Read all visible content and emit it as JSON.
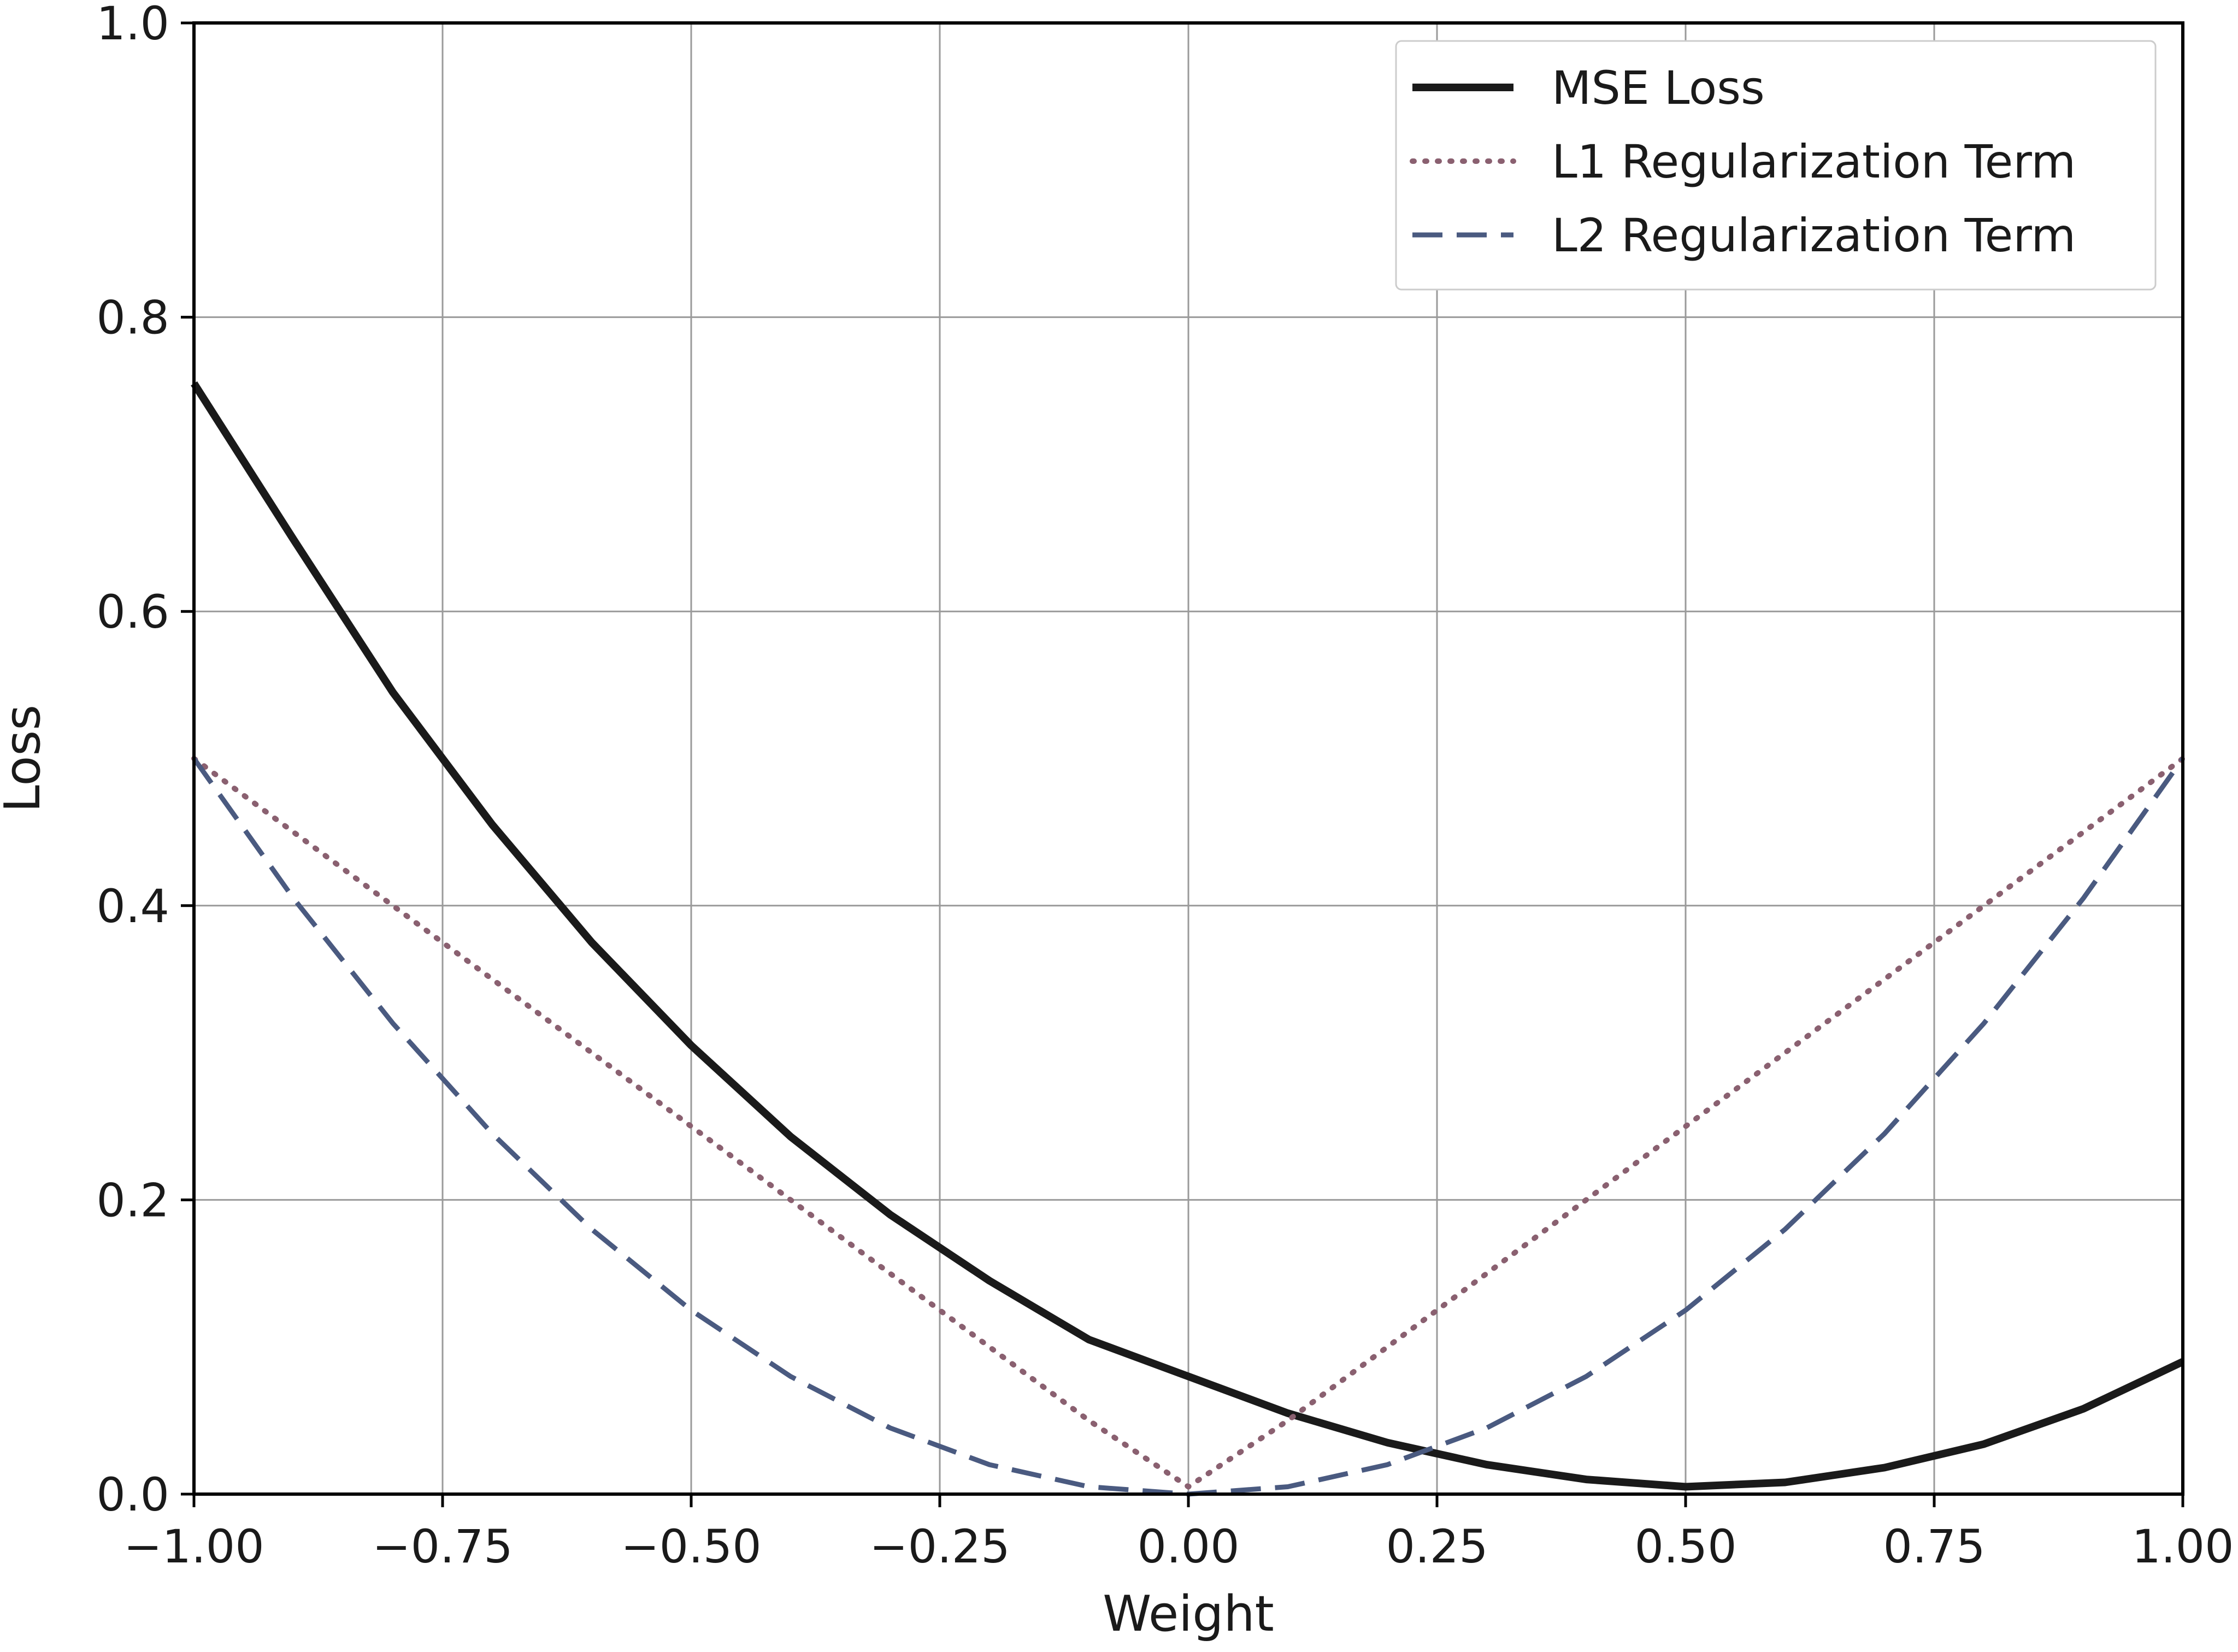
{
  "chart_data": {
    "type": "line",
    "title": "",
    "xlabel": "Weight",
    "ylabel": "Loss",
    "xlim": [
      -1.0,
      1.0
    ],
    "ylim": [
      0.0,
      1.0
    ],
    "grid": true,
    "legend_position": "top-right",
    "xticks": [
      -1.0,
      -0.75,
      -0.5,
      -0.25,
      0.0,
      0.25,
      0.5,
      0.75,
      1.0
    ],
    "xtick_labels": [
      "−1.00",
      "−0.75",
      "−0.50",
      "−0.25",
      "0.00",
      "0.25",
      "0.50",
      "0.75",
      "1.00"
    ],
    "yticks": [
      0.0,
      0.2,
      0.4,
      0.6,
      0.8,
      1.0
    ],
    "ytick_labels": [
      "0.0",
      "0.2",
      "0.4",
      "0.6",
      "0.8",
      "1.0"
    ],
    "x": [
      -1.0,
      -0.9,
      -0.8,
      -0.7,
      -0.6,
      -0.5,
      -0.4,
      -0.3,
      -0.2,
      -0.1,
      0.0,
      0.1,
      0.2,
      0.3,
      0.4,
      0.5,
      0.6,
      0.7,
      0.8,
      0.9,
      1.0
    ],
    "series": [
      {
        "name": "MSE Loss",
        "style": "solid",
        "color": "#1a1a1a",
        "values": [
          0.755,
          0.649,
          0.545,
          0.455,
          0.375,
          0.305,
          0.243,
          0.19,
          0.145,
          0.105,
          0.08,
          0.055,
          0.035,
          0.02,
          0.01,
          0.005,
          0.008,
          0.018,
          0.034,
          0.058,
          0.09
        ]
      },
      {
        "name": "L1 Regularization Term",
        "style": "dotted",
        "color": "#8a6070",
        "values": [
          0.5,
          0.45,
          0.4,
          0.35,
          0.3,
          0.25,
          0.2,
          0.15,
          0.1,
          0.05,
          0.005,
          0.05,
          0.1,
          0.15,
          0.2,
          0.25,
          0.3,
          0.35,
          0.4,
          0.45,
          0.5
        ]
      },
      {
        "name": "L2 Regularization Term",
        "style": "dashed",
        "color": "#4a5a80",
        "values": [
          0.5,
          0.405,
          0.32,
          0.245,
          0.18,
          0.125,
          0.08,
          0.045,
          0.02,
          0.005,
          0.0,
          0.005,
          0.02,
          0.045,
          0.08,
          0.125,
          0.18,
          0.245,
          0.32,
          0.405,
          0.5
        ]
      }
    ]
  }
}
